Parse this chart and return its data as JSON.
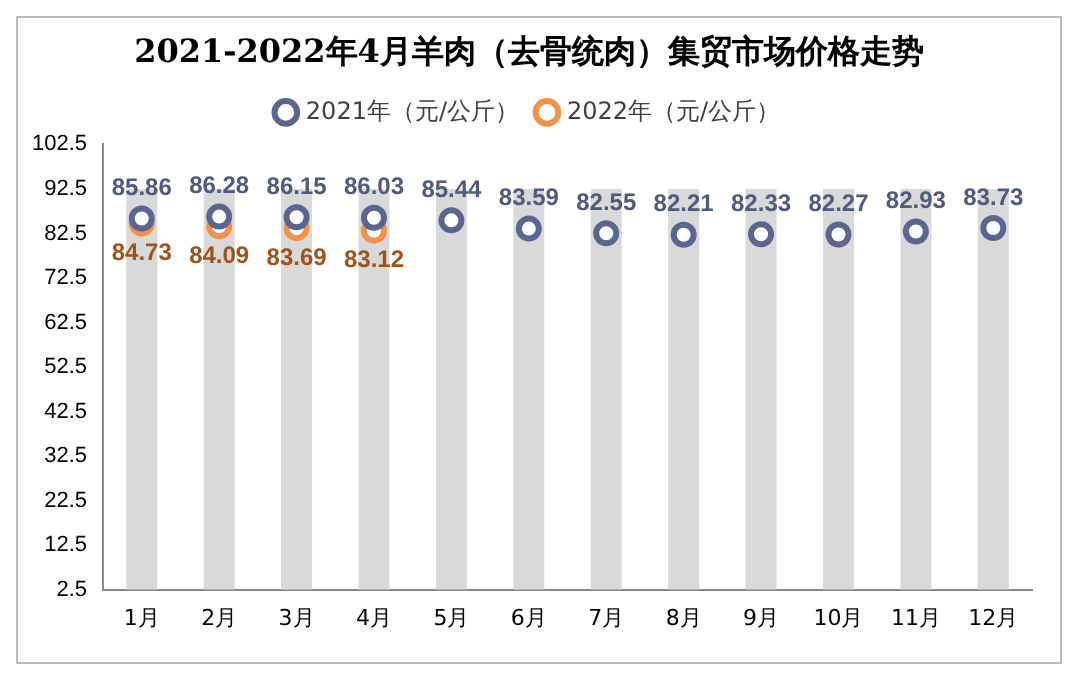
{
  "chart_data": {
    "type": "scatter",
    "title": "2021-2022年4月羊肉（去骨统肉）集贸市场价格走势",
    "categories": [
      "1月",
      "2月",
      "3月",
      "4月",
      "5月",
      "6月",
      "7月",
      "8月",
      "9月",
      "10月",
      "11月",
      "12月"
    ],
    "series": [
      {
        "type": "bar",
        "color": "#d9d9d9",
        "values": [
          92.5,
          92.5,
          92.5,
          92.5,
          92.5,
          92.5,
          92.5,
          92.5,
          92.5,
          92.5,
          92.5,
          92.5
        ]
      },
      {
        "name": "2021年（元/公斤）",
        "color": "#5b6591",
        "values": [
          85.86,
          86.28,
          86.15,
          86.03,
          85.44,
          83.59,
          82.55,
          82.21,
          82.33,
          82.27,
          82.93,
          83.73
        ],
        "value_labels": [
          "85.86",
          "86.28",
          "86.15",
          "86.03",
          "85.44",
          "83.59",
          "82.55",
          "82.21",
          "82.33",
          "82.27",
          "82.93",
          "83.73"
        ]
      },
      {
        "name": "2022年（元/公斤）",
        "color": "#f0924a",
        "values": [
          84.73,
          84.09,
          83.69,
          83.12,
          null,
          null,
          null,
          null,
          null,
          null,
          null,
          null
        ],
        "value_labels": [
          "84.73",
          "84.09",
          "83.69",
          "83.12",
          null,
          null,
          null,
          null,
          null,
          null,
          null,
          null
        ]
      }
    ],
    "ylim": [
      2.5,
      102.5
    ],
    "yticks": [
      2.5,
      12.5,
      22.5,
      32.5,
      42.5,
      52.5,
      62.5,
      72.5,
      82.5,
      92.5,
      102.5
    ],
    "grid": false,
    "legend": "top",
    "marker": "circle"
  }
}
